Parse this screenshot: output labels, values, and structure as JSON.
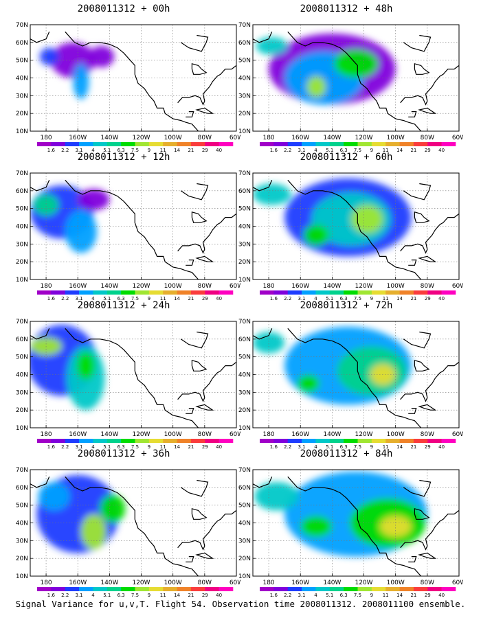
{
  "caption": "Signal Variance for u,v,T. Flight 54. Observation time 2008011312. 2008011100 ensemble.",
  "longitude_ticks": [
    "180",
    "160W",
    "140W",
    "120W",
    "100W",
    "80W",
    "60W"
  ],
  "latitude_ticks": [
    "70N",
    "60N",
    "50N",
    "40N",
    "30N",
    "20N",
    "10N"
  ],
  "colorbar": {
    "labels": [
      "1.6",
      "2.2",
      "3.1",
      "4",
      "5.1",
      "6.3",
      "7.5",
      "9",
      "11",
      "14",
      "21",
      "29",
      "40"
    ],
    "colors": [
      "#a000c8",
      "#7f00dc",
      "#1e3cff",
      "#00a0ff",
      "#00c8c8",
      "#00d28c",
      "#00dc00",
      "#a0e632",
      "#e6dc32",
      "#e6af2d",
      "#f08228",
      "#fa3c3c",
      "#f00082",
      "#ff00c0"
    ]
  },
  "panels": [
    {
      "title": "2008011312 + 00h",
      "col": 0,
      "row": 0,
      "blobs": [
        [
          -163,
          50,
          14,
          10,
          1
        ],
        [
          -158,
          38,
          5,
          10,
          3
        ],
        [
          -145,
          52,
          8,
          6,
          1
        ],
        [
          -178,
          52,
          6,
          5,
          2
        ]
      ]
    },
    {
      "title": "2008011312 + 12h",
      "col": 0,
      "row": 1,
      "blobs": [
        [
          -170,
          48,
          20,
          15,
          2
        ],
        [
          -158,
          37,
          10,
          12,
          3
        ],
        [
          -180,
          52,
          8,
          6,
          5
        ],
        [
          -150,
          55,
          10,
          6,
          1
        ]
      ]
    },
    {
      "title": "2008011312 + 24h",
      "col": 0,
      "row": 2,
      "blobs": [
        [
          -170,
          48,
          22,
          20,
          2
        ],
        [
          -155,
          38,
          12,
          18,
          4
        ],
        [
          -180,
          56,
          10,
          5,
          7
        ],
        [
          -155,
          45,
          6,
          8,
          6
        ]
      ]
    },
    {
      "title": "2008011312 + 36h",
      "col": 0,
      "row": 3,
      "blobs": [
        [
          -160,
          45,
          26,
          22,
          2
        ],
        [
          -150,
          35,
          8,
          10,
          7
        ],
        [
          -138,
          48,
          8,
          8,
          6
        ],
        [
          -175,
          55,
          10,
          8,
          3
        ]
      ]
    },
    {
      "title": "2008011312 + 48h",
      "col": 1,
      "row": 0,
      "blobs": [
        [
          -140,
          45,
          40,
          20,
          1
        ],
        [
          -145,
          40,
          25,
          15,
          3
        ],
        [
          -150,
          35,
          6,
          6,
          7
        ],
        [
          -125,
          48,
          14,
          8,
          6
        ],
        [
          -178,
          58,
          10,
          5,
          4
        ]
      ]
    },
    {
      "title": "2008011312 + 60h",
      "col": 1,
      "row": 1,
      "blobs": [
        [
          -130,
          45,
          40,
          22,
          2
        ],
        [
          -128,
          44,
          25,
          15,
          4
        ],
        [
          -118,
          44,
          10,
          8,
          7
        ],
        [
          -150,
          35,
          8,
          6,
          6
        ],
        [
          -178,
          58,
          12,
          6,
          4
        ]
      ]
    },
    {
      "title": "2008011312 + 72h",
      "col": 1,
      "row": 2,
      "blobs": [
        [
          -130,
          45,
          40,
          22,
          3
        ],
        [
          -115,
          42,
          22,
          14,
          5
        ],
        [
          -108,
          40,
          8,
          6,
          8
        ],
        [
          -155,
          35,
          7,
          5,
          6
        ],
        [
          -180,
          58,
          10,
          6,
          4
        ]
      ]
    },
    {
      "title": "2008011312 + 84h",
      "col": 1,
      "row": 3,
      "blobs": [
        [
          -125,
          45,
          45,
          24,
          3
        ],
        [
          -105,
          40,
          24,
          14,
          6
        ],
        [
          -100,
          38,
          10,
          6,
          8
        ],
        [
          -150,
          38,
          10,
          6,
          6
        ],
        [
          -175,
          55,
          14,
          8,
          4
        ]
      ]
    }
  ]
}
